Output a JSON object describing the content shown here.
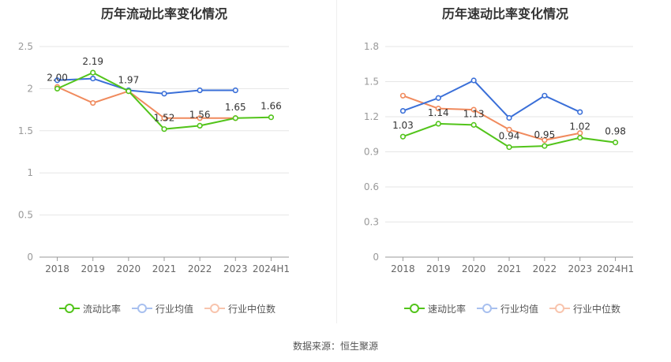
{
  "source": "数据来源：恒生聚源",
  "chart_data": [
    {
      "type": "line",
      "title": "历年流动比率变化情况",
      "categories": [
        "2018",
        "2019",
        "2020",
        "2021",
        "2022",
        "2023",
        "2024H1"
      ],
      "yticks": [
        "0",
        "0.5",
        "1",
        "1.5",
        "2",
        "2.5"
      ],
      "ylim": [
        0,
        2.5
      ],
      "xlabel": "",
      "ylabel": "",
      "series": [
        {
          "name": "流动比率",
          "color": "#52c41a",
          "values": [
            2.0,
            2.19,
            1.97,
            1.52,
            1.56,
            1.65,
            1.66
          ],
          "labels": [
            "2.00",
            "2.19",
            "1.97",
            "1.52",
            "1.56",
            "1.65",
            "1.66"
          ]
        },
        {
          "name": "行业均值",
          "color": "#3a6fd8",
          "values": [
            2.1,
            2.12,
            1.98,
            1.94,
            1.98,
            1.98,
            null
          ]
        },
        {
          "name": "行业中位数",
          "color": "#f08a5d",
          "values": [
            2.02,
            1.83,
            1.97,
            1.65,
            1.65,
            1.65,
            null
          ]
        }
      ]
    },
    {
      "type": "line",
      "title": "历年速动比率变化情况",
      "categories": [
        "2018",
        "2019",
        "2020",
        "2021",
        "2022",
        "2023",
        "2024H1"
      ],
      "yticks": [
        "0",
        "0.3",
        "0.6",
        "0.9",
        "1.2",
        "1.5",
        "1.8"
      ],
      "ylim": [
        0,
        1.8
      ],
      "xlabel": "",
      "ylabel": "",
      "series": [
        {
          "name": "速动比率",
          "color": "#52c41a",
          "values": [
            1.03,
            1.14,
            1.13,
            0.94,
            0.95,
            1.02,
            0.98
          ],
          "labels": [
            "1.03",
            "1.14",
            "1.13",
            "0.94",
            "0.95",
            "1.02",
            "0.98"
          ]
        },
        {
          "name": "行业均值",
          "color": "#3a6fd8",
          "values": [
            1.25,
            1.36,
            1.51,
            1.19,
            1.38,
            1.24,
            null
          ]
        },
        {
          "name": "行业中位数",
          "color": "#f08a5d",
          "values": [
            1.38,
            1.27,
            1.26,
            1.09,
            1.0,
            1.06,
            null
          ]
        }
      ]
    }
  ]
}
